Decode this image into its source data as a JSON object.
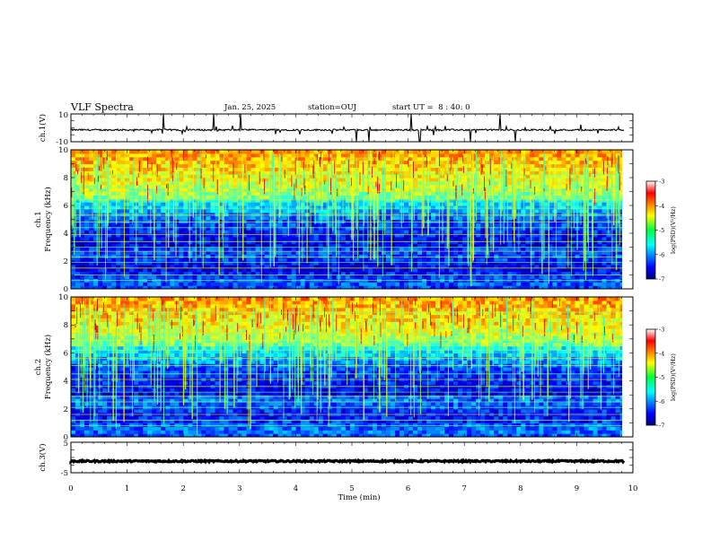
{
  "header": {
    "title": "VLF Spectra",
    "date": "Jan. 25, 2025",
    "station": "station=OUJ",
    "start_ut": "start UT =  8 : 40: 0"
  },
  "chart_data": [
    {
      "type": "line",
      "panel": "ch1-waveform",
      "ylabel": "ch.1(V)",
      "ylim": [
        -10,
        10
      ],
      "y_ticks": [
        "10",
        "-10"
      ],
      "baseline": -1.5,
      "x_range_min": [
        0,
        9.85
      ]
    },
    {
      "type": "heatmap",
      "panel": "ch1-spectrogram",
      "ylabel_top": "ch.1",
      "ylabel": "Frequency (kHz)",
      "ylim": [
        0,
        10
      ],
      "y_ticks": [
        "0",
        "2",
        "4",
        "6",
        "8",
        "10"
      ],
      "x_range_min": [
        0,
        9.85
      ],
      "colorbar": {
        "label": "log(PSD)(V²/Hz)",
        "range": [
          -7,
          -3
        ],
        "ticks": [
          "-3",
          "-4",
          "-5",
          "-6",
          "-7"
        ],
        "colormap": "jet"
      }
    },
    {
      "type": "heatmap",
      "panel": "ch2-spectrogram",
      "ylabel_top": "ch.2",
      "ylabel": "Frequency (kHz)",
      "ylim": [
        0,
        10
      ],
      "y_ticks": [
        "0",
        "2",
        "4",
        "6",
        "8",
        "10"
      ],
      "x_range_min": [
        0,
        9.85
      ],
      "colorbar": {
        "label": "log(PSD)(V²/Hz)",
        "range": [
          -7,
          -3
        ],
        "ticks": [
          "-3",
          "-4",
          "-5",
          "-6",
          "-7"
        ],
        "colormap": "jet"
      }
    },
    {
      "type": "line",
      "panel": "ch3-waveform",
      "ylabel": "ch.3(V)",
      "ylim": [
        -5,
        5
      ],
      "y_ticks": [
        "5",
        "-5"
      ],
      "baseline": -1.2,
      "x_range_min": [
        0,
        9.85
      ]
    }
  ],
  "x_axis": {
    "label": "Time (min)",
    "range": [
      0,
      10
    ],
    "ticks": [
      "0",
      "1",
      "2",
      "3",
      "4",
      "5",
      "6",
      "7",
      "8",
      "9",
      "10"
    ]
  }
}
